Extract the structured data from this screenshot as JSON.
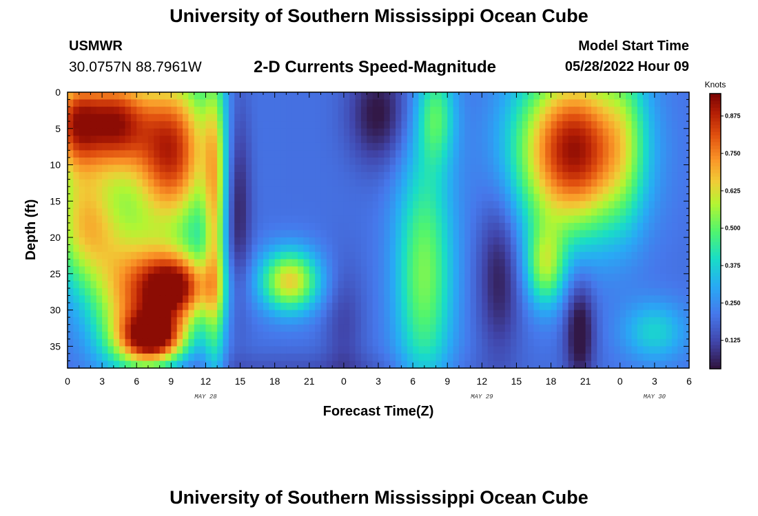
{
  "header": {
    "title": "University of Southern Mississippi Ocean Cube",
    "station": "USMWR",
    "coords": "30.0757N  88.7961W",
    "subtitle": "2-D Currents Speed-Magnitude",
    "model_label": "Model Start Time",
    "model_time": "05/28/2022 Hour 09"
  },
  "footer": {
    "title": "University of Southern Mississippi Ocean Cube"
  },
  "chart_data": {
    "type": "heatmap",
    "title": "2-D Currents Speed-Magnitude",
    "xlabel": "Forecast Time(Z)",
    "ylabel": "Depth (ft)",
    "x_range_hours": [
      0,
      54
    ],
    "x_ticks": [
      {
        "h": 0,
        "label": "0"
      },
      {
        "h": 3,
        "label": "3"
      },
      {
        "h": 6,
        "label": "6"
      },
      {
        "h": 9,
        "label": "9"
      },
      {
        "h": 12,
        "label": "12"
      },
      {
        "h": 15,
        "label": "15"
      },
      {
        "h": 18,
        "label": "18"
      },
      {
        "h": 21,
        "label": "21"
      },
      {
        "h": 24,
        "label": "0"
      },
      {
        "h": 27,
        "label": "3"
      },
      {
        "h": 30,
        "label": "6"
      },
      {
        "h": 33,
        "label": "9"
      },
      {
        "h": 36,
        "label": "12"
      },
      {
        "h": 39,
        "label": "15"
      },
      {
        "h": 42,
        "label": "18"
      },
      {
        "h": 45,
        "label": "21"
      },
      {
        "h": 48,
        "label": "0"
      },
      {
        "h": 51,
        "label": "3"
      },
      {
        "h": 54,
        "label": "6"
      }
    ],
    "date_labels": [
      {
        "h": 12,
        "label": "MAY 28"
      },
      {
        "h": 36,
        "label": "MAY 29"
      },
      {
        "h": 51,
        "label": "MAY 30"
      }
    ],
    "y_range_ft": [
      0,
      38
    ],
    "y_ticks": [
      0,
      5,
      10,
      15,
      20,
      25,
      30,
      35
    ],
    "colorbar": {
      "title": "Knots",
      "range": [
        0.03,
        0.95
      ],
      "ticks": [
        "0.125",
        "0.250",
        "0.375",
        "0.500",
        "0.625",
        "0.750",
        "0.875"
      ],
      "tick_values": [
        0.125,
        0.25,
        0.375,
        0.5,
        0.625,
        0.75,
        0.875
      ]
    },
    "field_blobs": [
      {
        "t": 0.5,
        "d": 4,
        "st": 1.6,
        "sd": 5,
        "v": 0.55
      },
      {
        "t": 1.5,
        "d": 18,
        "st": 2.2,
        "sd": 6,
        "v": 0.43
      },
      {
        "t": 4.0,
        "d": 4,
        "st": 2.0,
        "sd": 5,
        "v": 0.6
      },
      {
        "t": 5.5,
        "d": 28,
        "st": 2.5,
        "sd": 7,
        "v": 0.44
      },
      {
        "t": 9.0,
        "d": 8,
        "st": 2.5,
        "sd": 8,
        "v": 0.67
      },
      {
        "t": 9.5,
        "d": 27,
        "st": 2.2,
        "sd": 3.5,
        "v": 0.64
      },
      {
        "t": 7.5,
        "d": 34,
        "st": 2.0,
        "sd": 2.5,
        "v": 0.6
      },
      {
        "t": 12.8,
        "d": 18,
        "st": 0.7,
        "sd": 16,
        "v": 0.35
      },
      {
        "t": 14.8,
        "d": 15,
        "st": 0.8,
        "sd": 10,
        "v": -0.16
      },
      {
        "t": 19.3,
        "d": 26,
        "st": 1.8,
        "sd": 3,
        "v": 0.45
      },
      {
        "t": 27.0,
        "d": 3,
        "st": 1.8,
        "sd": 5,
        "v": -0.17
      },
      {
        "t": 24.0,
        "d": 32,
        "st": 1.2,
        "sd": 6,
        "v": -0.08
      },
      {
        "t": 31.0,
        "d": 25,
        "st": 1.8,
        "sd": 12,
        "v": 0.33
      },
      {
        "t": 32.0,
        "d": 3,
        "st": 1.2,
        "sd": 5,
        "v": 0.25
      },
      {
        "t": 37.5,
        "d": 25,
        "st": 1.3,
        "sd": 8,
        "v": -0.15
      },
      {
        "t": 44.0,
        "d": 8,
        "st": 3.5,
        "sd": 8,
        "v": 0.72
      },
      {
        "t": 41.5,
        "d": 24,
        "st": 1.2,
        "sd": 4,
        "v": 0.32
      },
      {
        "t": 44.5,
        "d": 33,
        "st": 0.9,
        "sd": 5,
        "v": -0.2
      },
      {
        "t": 51.0,
        "d": 33,
        "st": 2.0,
        "sd": 3,
        "v": 0.18
      },
      {
        "t": 48.5,
        "d": 6,
        "st": 1.3,
        "sd": 9,
        "v": 0.12
      },
      {
        "t": 20.0,
        "d": 38,
        "st": 10,
        "sd": 1.5,
        "v": -0.05
      }
    ],
    "field_base": 0.2,
    "field_min": 0.04,
    "field_max": 0.93
  }
}
